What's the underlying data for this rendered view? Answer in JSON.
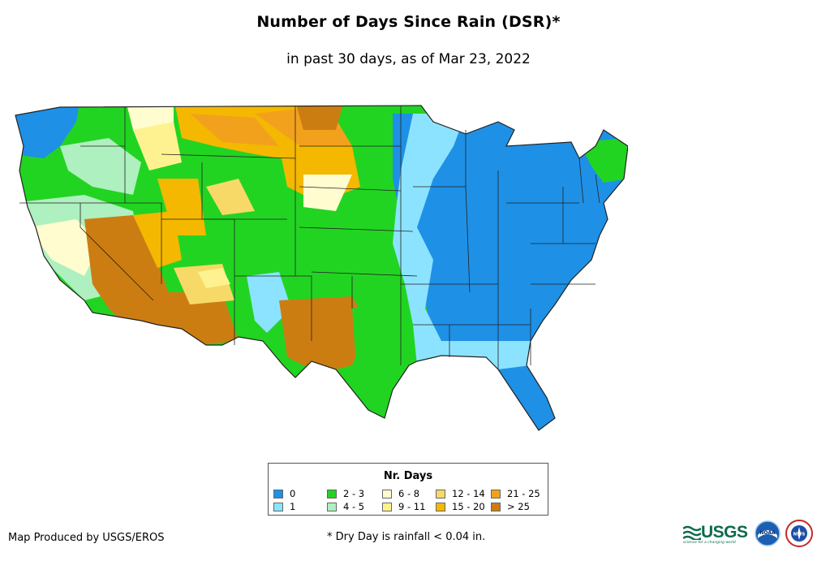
{
  "map": {
    "title": "Number of Days Since Rain (DSR)*",
    "subtitle": "in past 30 days, as of Mar 23, 2022",
    "region": "Contiguous United States"
  },
  "legend": {
    "title": "Nr. Days",
    "items": [
      {
        "label": "0",
        "color": "#1e90e6"
      },
      {
        "label": "1",
        "color": "#8ce3ff"
      },
      {
        "label": "2 - 3",
        "color": "#22d422"
      },
      {
        "label": "4 - 5",
        "color": "#aef0bf"
      },
      {
        "label": "6 - 8",
        "color": "#fffccf"
      },
      {
        "label": "9 - 11",
        "color": "#fdf28f"
      },
      {
        "label": "12 - 14",
        "color": "#f7d968"
      },
      {
        "label": "15 - 20",
        "color": "#f4b800"
      },
      {
        "label": "21 - 25",
        "color": "#f2a11c"
      },
      {
        "label": "> 25",
        "color": "#cc7d12"
      }
    ]
  },
  "footer": {
    "credit": "Map Produced by USGS/EROS",
    "note": "* Dry Day is rainfall < 0.04 in."
  },
  "logos": {
    "usgs": "USGS",
    "usgs_tagline": "science for a changing world",
    "noaa": "NOAA",
    "nws": "NWS"
  }
}
